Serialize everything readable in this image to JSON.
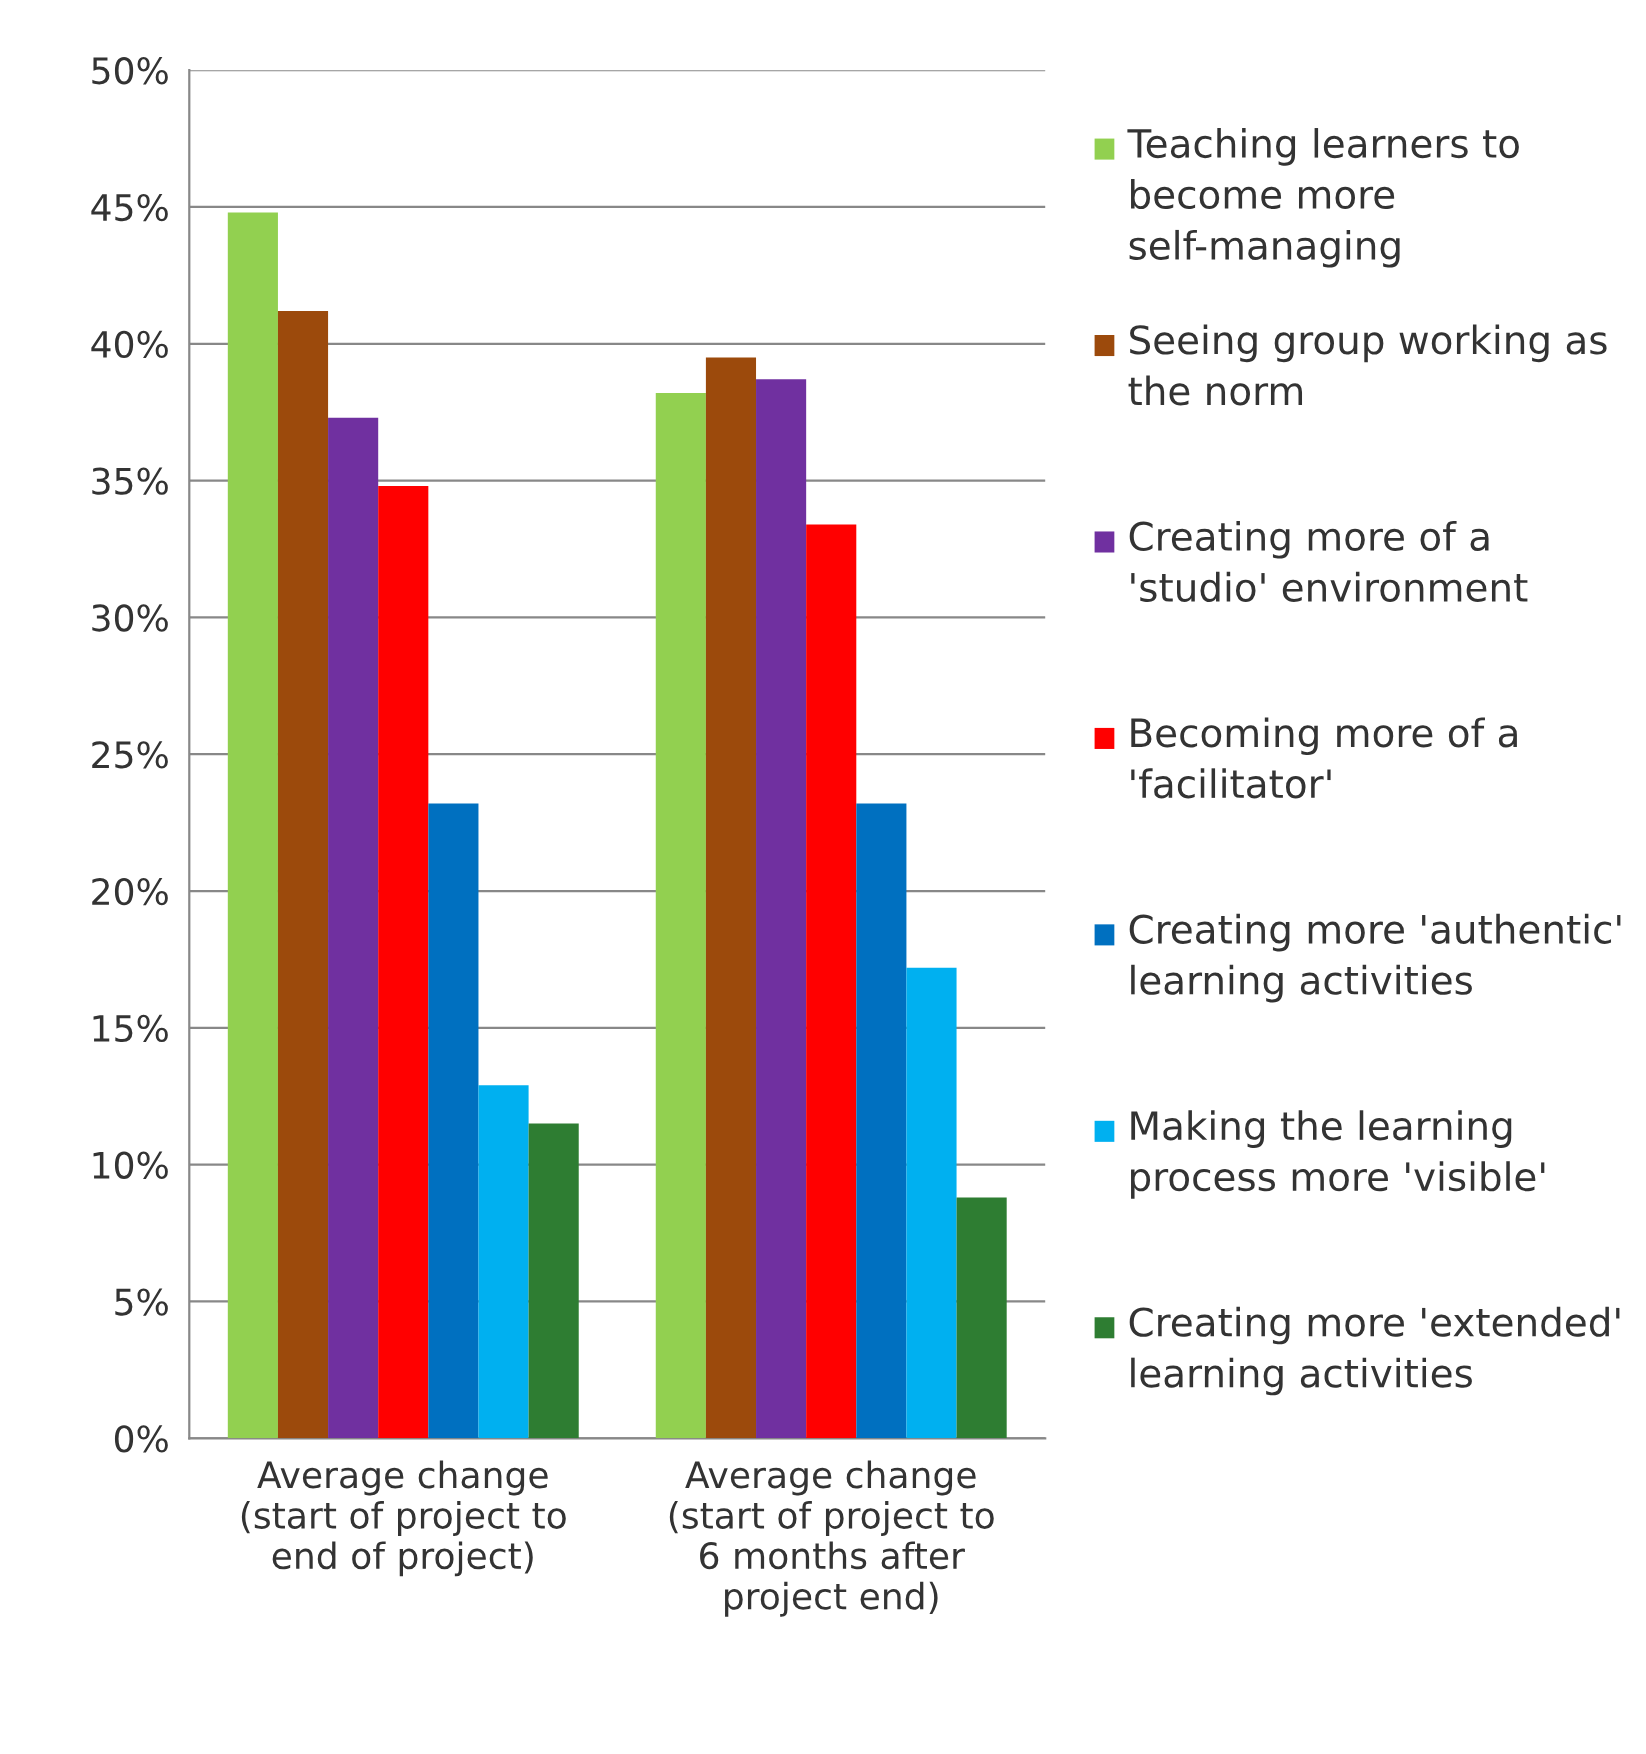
{
  "chart_data": {
    "type": "bar",
    "categories": [
      "Average change\n(start of project to\nend of project)",
      "Average change\n(start of project to\n6 months after\nproject end)"
    ],
    "series": [
      {
        "name": "Teaching learners to become more self-managing",
        "color": "#92d050",
        "values": [
          44.8,
          38.2
        ]
      },
      {
        "name": "Seeing group working as the norm",
        "color": "#9c4a0c",
        "values": [
          41.2,
          39.5
        ]
      },
      {
        "name": "Creating more of a 'studio' environment",
        "color": "#7030a0",
        "values": [
          37.3,
          38.7
        ]
      },
      {
        "name": "Becoming more of a 'facilitator'",
        "color": "#ff0000",
        "values": [
          34.8,
          33.4
        ]
      },
      {
        "name": "Creating more 'authentic' learning activities",
        "color": "#0070c0",
        "values": [
          23.2,
          23.2
        ]
      },
      {
        "name": "Making the learning process more 'visible'",
        "color": "#00b0f0",
        "values": [
          12.9,
          17.2
        ]
      },
      {
        "name": "Creating more 'extended' learning activities",
        "color": "#2e7d32",
        "values": [
          11.5,
          8.8
        ]
      }
    ],
    "ylim": [
      0,
      50
    ],
    "yticks": [
      {
        "value": 0,
        "label": "0%"
      },
      {
        "value": 5,
        "label": "5%"
      },
      {
        "value": 10,
        "label": "10%"
      },
      {
        "value": 15,
        "label": "15%"
      },
      {
        "value": 20,
        "label": "20%"
      },
      {
        "value": 25,
        "label": "25%"
      },
      {
        "value": 30,
        "label": "30%"
      },
      {
        "value": 35,
        "label": "35%"
      },
      {
        "value": 40,
        "label": "40%"
      },
      {
        "value": 45,
        "label": "45%"
      },
      {
        "value": 50,
        "label": "50%"
      }
    ],
    "grid": "y",
    "legend": "right"
  }
}
